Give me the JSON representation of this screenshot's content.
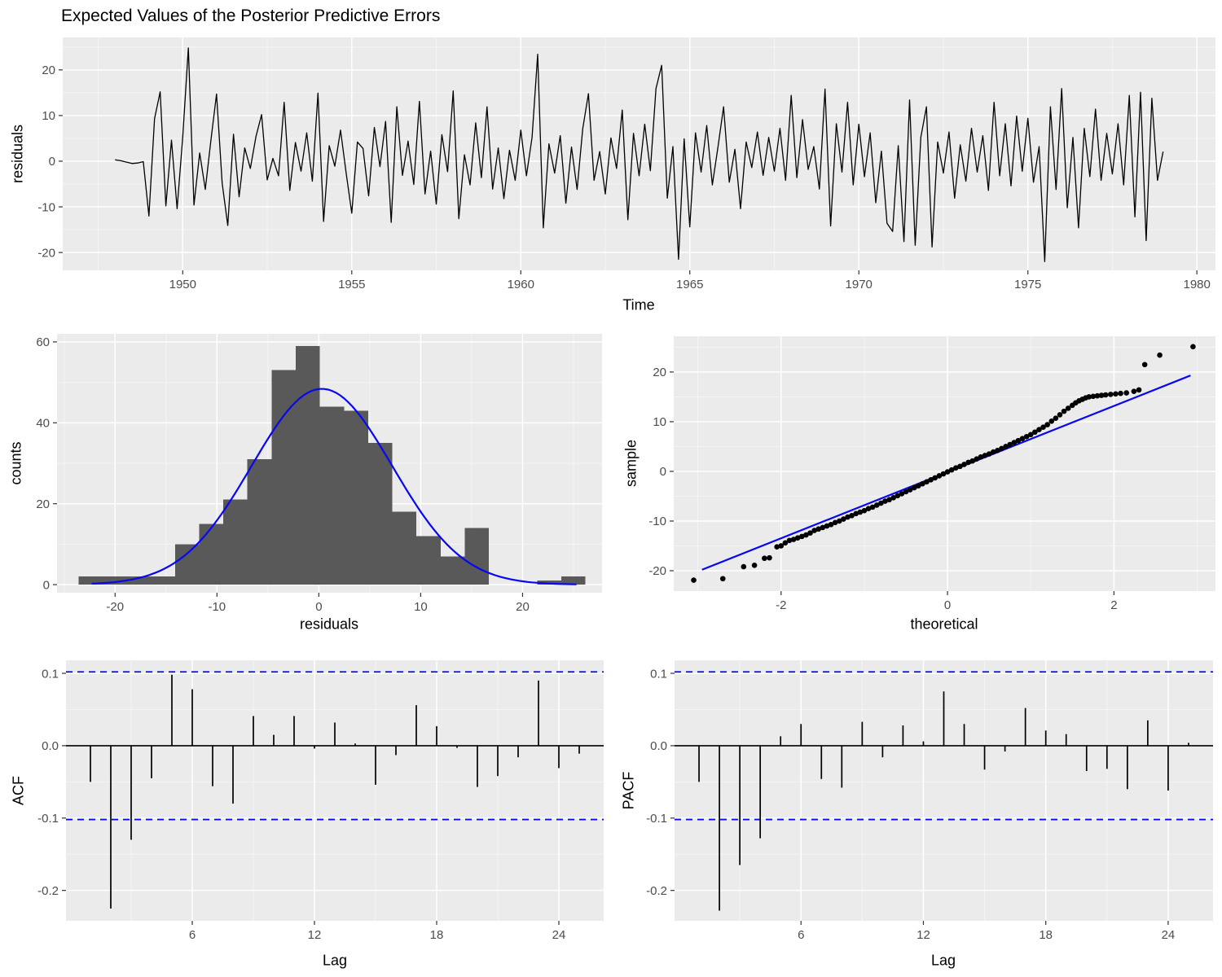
{
  "colors": {
    "background": "#FFFFFF",
    "panel": "#EBEBEB",
    "grid_major": "#FFFFFF",
    "grid_minor": "rgba(255,255,255,0.55)",
    "tick_text": "#4D4D4D",
    "tick_mark": "#333333",
    "series": "#000000",
    "hist_fill": "#595959",
    "blue": "#0808F0",
    "point": "#000000"
  },
  "chart_data": [
    {
      "id": "timeseries",
      "type": "line",
      "title": "Expected Values of the Posterior Predictive Errors",
      "xlabel": "Time",
      "ylabel": "residuals",
      "xlim": [
        1946.45,
        1980.55
      ],
      "ylim": [
        -23.9,
        27.1
      ],
      "grid": true,
      "xticks": {
        "values": [
          1950,
          1955,
          1960,
          1965,
          1970,
          1975,
          1980
        ],
        "labels": [
          "1950",
          "1955",
          "1960",
          "1965",
          "1970",
          "1975",
          "1980"
        ]
      },
      "x_minor": [
        1947.5,
        1952.5,
        1957.5,
        1962.5,
        1967.5,
        1972.5,
        1977.5
      ],
      "yticks": {
        "values": [
          -20,
          -10,
          0,
          10,
          20
        ],
        "labels": [
          "-20",
          "-10",
          "0",
          "10",
          "20"
        ]
      },
      "y_minor": [
        -15,
        -5,
        5,
        15,
        25
      ],
      "x_start": 1948.0,
      "x_step": 0.166667,
      "values": [
        0.3,
        0.1,
        -0.2,
        -0.5,
        -0.4,
        -0.1,
        -12,
        9.3,
        15.2,
        -9.8,
        4.6,
        -10.4,
        5.3,
        24.8,
        -9.6,
        1.8,
        -6.2,
        4.6,
        14.7,
        -4.8,
        -14.1,
        5.9,
        -7.8,
        2.9,
        -1.6,
        5.4,
        10.2,
        -4.1,
        0.6,
        -3.2,
        12.9,
        -6.4,
        4.1,
        -2.2,
        6.2,
        -4.4,
        14.9,
        -13.2,
        3.4,
        -1.1,
        6.8,
        -2.6,
        -11.4,
        4.2,
        2.8,
        -7.6,
        7.4,
        -1.2,
        8.7,
        -13.4,
        11.9,
        -3.1,
        4.4,
        -5.1,
        13.1,
        -7.2,
        2.2,
        -9.4,
        5.8,
        -2.3,
        15.4,
        -12.6,
        1.4,
        -5.2,
        8.4,
        -3.6,
        11.9,
        -6.1,
        2.9,
        -8.2,
        2.4,
        -4.2,
        6.8,
        -3.2,
        5.2,
        23.4,
        -14.6,
        3.8,
        -2.6,
        5.6,
        -9.2,
        3.1,
        -6.2,
        7.1,
        14.8,
        -4.2,
        2.1,
        -7.2,
        5.1,
        -1.6,
        11.2,
        -12.8,
        6.1,
        -3.2,
        8.1,
        -2.1,
        15.9,
        21,
        -8.1,
        3.2,
        -21.5,
        4.9,
        -14.4,
        6.2,
        -2.4,
        7.8,
        -5.2,
        3.1,
        11.9,
        -4.6,
        2.6,
        -10.4,
        4.2,
        -1.4,
        6.4,
        -3.1,
        5.2,
        -2.2,
        7.2,
        -4.2,
        14.4,
        -3.6,
        9.1,
        -1.8,
        3.2,
        -6.1,
        15.8,
        -14.2,
        8.2,
        -2.4,
        12.9,
        -5.2,
        8.1,
        -3.4,
        6.2,
        -9.1,
        2.2,
        -13.6,
        -15.4,
        3.4,
        -17.6,
        13.4,
        -18.4,
        5.2,
        11.9,
        -18.8,
        4.2,
        -2.6,
        6.4,
        -8.1,
        3.6,
        -4.4,
        7.2,
        -2.4,
        5.6,
        -6.4,
        12.9,
        -3.2,
        8.2,
        -5.4,
        9.9,
        -2.2,
        9.4,
        -4.6,
        3.2,
        -22,
        11.9,
        -6.2,
        15.9,
        -10.2,
        5.2,
        -14.6,
        7.2,
        -3.4,
        11.4,
        -4.2,
        6.1,
        -2.8,
        8.2,
        -5.2,
        14.4,
        -12.2,
        15.1,
        -17.4,
        13.8,
        -4.2,
        2.1
      ]
    },
    {
      "id": "histogram",
      "type": "bar",
      "xlabel": "residuals",
      "ylabel": "counts",
      "xlim": [
        -25.7,
        27.8
      ],
      "ylim": [
        -2,
        62
      ],
      "grid": true,
      "xticks": {
        "values": [
          -20,
          -10,
          0,
          10,
          20
        ],
        "labels": [
          "-20",
          "-10",
          "0",
          "10",
          "20"
        ]
      },
      "x_minor": [
        -25,
        -15,
        -5,
        5,
        15,
        25
      ],
      "yticks": {
        "values": [
          0,
          20,
          40,
          60
        ],
        "labels": [
          "0",
          "20",
          "40",
          "60"
        ]
      },
      "y_minor": [
        10,
        30,
        50
      ],
      "bin_start": -23.6,
      "bin_width": 2.37,
      "counts": [
        2,
        2,
        2,
        2,
        10,
        15,
        21,
        31,
        53,
        59,
        44,
        43,
        35,
        18,
        12,
        7,
        14,
        0,
        0,
        1,
        2
      ],
      "normal_curve": {
        "amp": 48.4,
        "mean": 0.3,
        "sd": 6.9,
        "from": -22.3,
        "to": 25.3
      }
    },
    {
      "id": "qq",
      "type": "scatter",
      "xlabel": "theoretical",
      "ylabel": "sample",
      "xlim": [
        -3.29,
        3.22
      ],
      "ylim": [
        -24.1,
        27.2
      ],
      "grid": true,
      "xticks": {
        "values": [
          -2,
          0,
          2
        ],
        "labels": [
          "-2",
          "0",
          "2"
        ]
      },
      "x_minor": [
        -3,
        -1,
        1,
        3
      ],
      "yticks": {
        "values": [
          -20,
          -10,
          0,
          10,
          20
        ],
        "labels": [
          "-20",
          "-10",
          "0",
          "10",
          "20"
        ]
      },
      "y_minor": [
        -15,
        -5,
        5,
        15,
        25
      ],
      "line": {
        "x1": -2.95,
        "y1": -19.8,
        "x2": 2.92,
        "y2": 19.3
      },
      "points": [
        [
          -3.05,
          -21.9
        ],
        [
          -2.7,
          -21.6
        ],
        [
          -2.45,
          -19.2
        ],
        [
          -2.32,
          -18.9
        ],
        [
          -2.2,
          -17.5
        ],
        [
          -2.14,
          -17.4
        ],
        [
          -2.05,
          -15.2
        ],
        [
          -2.0,
          -15.0
        ],
        [
          -1.95,
          -14.4
        ],
        [
          -1.9,
          -13.9
        ],
        [
          -1.85,
          -13.7
        ],
        [
          -1.8,
          -13.4
        ],
        [
          -1.75,
          -13.1
        ],
        [
          -1.7,
          -12.8
        ],
        [
          -1.65,
          -12.4
        ],
        [
          -1.6,
          -11.9
        ],
        [
          -1.55,
          -11.6
        ],
        [
          -1.5,
          -11.3
        ],
        [
          -1.45,
          -11
        ],
        [
          -1.4,
          -10.7
        ],
        [
          -1.35,
          -10.3
        ],
        [
          -1.3,
          -10
        ],
        [
          -1.25,
          -9.6
        ],
        [
          -1.2,
          -9.2
        ],
        [
          -1.15,
          -8.9
        ],
        [
          -1.1,
          -8.5
        ],
        [
          -1.05,
          -8.2
        ],
        [
          -1,
          -7.9
        ],
        [
          -0.95,
          -7.5
        ],
        [
          -0.9,
          -7.2
        ],
        [
          -0.85,
          -6.8
        ],
        [
          -0.8,
          -6.4
        ],
        [
          -0.75,
          -6
        ],
        [
          -0.7,
          -5.7
        ],
        [
          -0.65,
          -5.3
        ],
        [
          -0.6,
          -4.9
        ],
        [
          -0.55,
          -4.5
        ],
        [
          -0.5,
          -4.1
        ],
        [
          -0.45,
          -3.7
        ],
        [
          -0.4,
          -3.3
        ],
        [
          -0.35,
          -2.9
        ],
        [
          -0.3,
          -2.5
        ],
        [
          -0.25,
          -2.1
        ],
        [
          -0.2,
          -1.7
        ],
        [
          -0.15,
          -1.3
        ],
        [
          -0.1,
          -0.9
        ],
        [
          -0.05,
          -0.5
        ],
        [
          0,
          -0.1
        ],
        [
          0.05,
          0.3
        ],
        [
          0.1,
          0.7
        ],
        [
          0.15,
          1
        ],
        [
          0.2,
          1.4
        ],
        [
          0.25,
          1.8
        ],
        [
          0.3,
          2.1
        ],
        [
          0.35,
          2.5
        ],
        [
          0.4,
          2.9
        ],
        [
          0.45,
          3.2
        ],
        [
          0.5,
          3.5
        ],
        [
          0.55,
          3.9
        ],
        [
          0.6,
          4.2
        ],
        [
          0.65,
          4.6
        ],
        [
          0.7,
          5
        ],
        [
          0.75,
          5.4
        ],
        [
          0.8,
          5.8
        ],
        [
          0.85,
          6.2
        ],
        [
          0.9,
          6.6
        ],
        [
          0.95,
          7
        ],
        [
          1,
          7.4
        ],
        [
          1.05,
          7.9
        ],
        [
          1.1,
          8.4
        ],
        [
          1.15,
          8.9
        ],
        [
          1.2,
          9.4
        ],
        [
          1.25,
          10.1
        ],
        [
          1.3,
          10.7
        ],
        [
          1.35,
          11.4
        ],
        [
          1.4,
          12.1
        ],
        [
          1.45,
          12.7
        ],
        [
          1.5,
          13.3
        ],
        [
          1.54,
          13.8
        ],
        [
          1.58,
          14.2
        ],
        [
          1.62,
          14.5
        ],
        [
          1.66,
          14.8
        ],
        [
          1.7,
          15
        ],
        [
          1.75,
          15.1
        ],
        [
          1.8,
          15.2
        ],
        [
          1.85,
          15.3
        ],
        [
          1.9,
          15.4
        ],
        [
          1.96,
          15.5
        ],
        [
          2.02,
          15.6
        ],
        [
          2.08,
          15.7
        ],
        [
          2.15,
          15.8
        ],
        [
          2.24,
          16.1
        ],
        [
          2.3,
          16.4
        ],
        [
          2.37,
          21.5
        ],
        [
          2.55,
          23.4
        ],
        [
          2.95,
          25.1
        ]
      ]
    },
    {
      "id": "acf",
      "type": "stem",
      "xlabel": "Lag",
      "ylabel": "ACF",
      "xlim": [
        -0.2,
        26.2
      ],
      "ylim": [
        -0.242,
        0.118
      ],
      "grid": true,
      "xticks": {
        "values": [
          6,
          12,
          18,
          24
        ],
        "labels": [
          "6",
          "12",
          "18",
          "24"
        ]
      },
      "x_minor": [
        3,
        9,
        15,
        21
      ],
      "yticks": {
        "values": [
          0.1,
          0,
          -0.1,
          -0.2
        ],
        "labels": [
          "0.1",
          "0.0",
          "-0.1",
          "-0.2"
        ]
      },
      "y_minor": [
        0.05,
        -0.05,
        -0.15
      ],
      "lag_start": 1,
      "conf_bounds": [
        0.102,
        -0.102
      ],
      "values": [
        -0.05,
        -0.225,
        -0.13,
        -0.045,
        0.098,
        0.078,
        -0.056,
        -0.08,
        0.041,
        0.015,
        0.041,
        -0.004,
        0.032,
        0.003,
        -0.054,
        -0.013,
        0.056,
        0.027,
        -0.003,
        -0.057,
        -0.042,
        -0.016,
        0.09,
        -0.031,
        -0.011
      ]
    },
    {
      "id": "pacf",
      "type": "stem",
      "xlabel": "Lag",
      "ylabel": "PACF",
      "xlim": [
        -0.2,
        26.2
      ],
      "ylim": [
        -0.242,
        0.118
      ],
      "grid": true,
      "xticks": {
        "values": [
          6,
          12,
          18,
          24
        ],
        "labels": [
          "6",
          "12",
          "18",
          "24"
        ]
      },
      "x_minor": [
        3,
        9,
        15,
        21
      ],
      "yticks": {
        "values": [
          0.1,
          0,
          -0.1,
          -0.2
        ],
        "labels": [
          "0.1",
          "0.0",
          "-0.1",
          "-0.2"
        ]
      },
      "y_minor": [
        0.05,
        -0.05,
        -0.15
      ],
      "lag_start": 1,
      "conf_bounds": [
        0.102,
        -0.102
      ],
      "values": [
        -0.05,
        -0.228,
        -0.165,
        -0.128,
        0.013,
        0.03,
        -0.046,
        -0.058,
        0.033,
        -0.016,
        0.028,
        0.006,
        0.075,
        0.03,
        -0.033,
        -0.008,
        0.052,
        0.021,
        0.016,
        -0.035,
        -0.032,
        -0.06,
        0.035,
        -0.062,
        0.004
      ]
    }
  ]
}
